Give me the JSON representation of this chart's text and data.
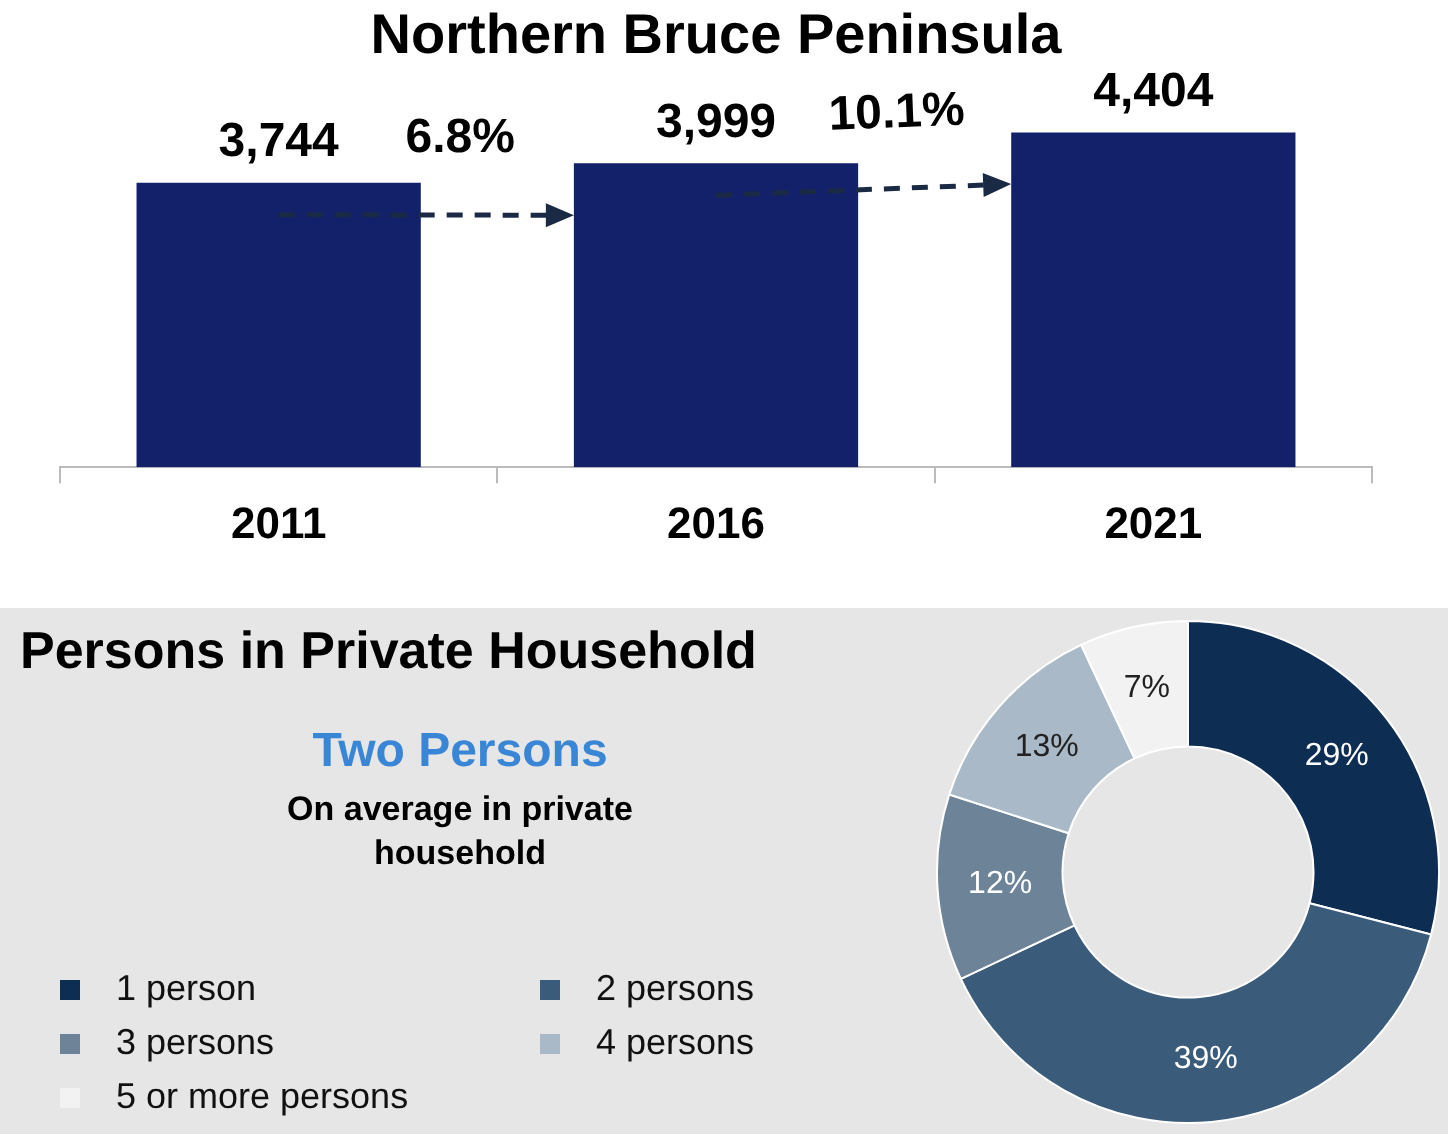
{
  "chart_data": [
    {
      "type": "bar",
      "title": "Northern Bruce Peninsula",
      "categories": [
        "2011",
        "2016",
        "2021"
      ],
      "values": [
        3744,
        3999,
        4404
      ],
      "value_labels": [
        "3,744",
        "3,999",
        "4,404"
      ],
      "color": "#13216b",
      "tick_labels": "x",
      "annotations": [
        "6.8%",
        "10.1%"
      ]
    },
    {
      "type": "donut",
      "title": "Persons in Private Household",
      "subtitle": "Two Persons",
      "annotations": [
        "On average in private household"
      ],
      "categories": [
        "1 person",
        "2 persons",
        "3 persons",
        "4 persons",
        "5 or more persons"
      ],
      "values": [
        29,
        39,
        12,
        13,
        7
      ],
      "value_labels": [
        "29%",
        "39%",
        "12%",
        "13%",
        "7%"
      ],
      "colors": [
        "#0d2d52",
        "#3b5b7b",
        "#6d8398",
        "#aab9c7",
        "#f2f2f2"
      ],
      "legend": "bottom left"
    }
  ]
}
